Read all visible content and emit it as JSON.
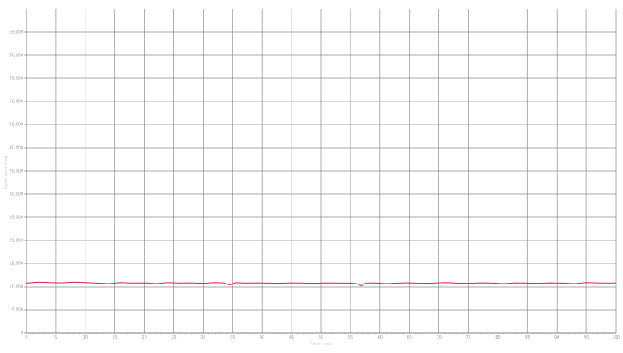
{
  "chart_data": {
    "type": "line",
    "title": "",
    "xlabel": "Time (ms)",
    "ylabel": "Light level (lux)",
    "xlim": [
      0,
      100
    ],
    "ylim": [
      0,
      70000
    ],
    "xticks": [
      0,
      5,
      10,
      15,
      20,
      25,
      30,
      35,
      40,
      45,
      50,
      55,
      60,
      65,
      70,
      75,
      80,
      85,
      90,
      95,
      100
    ],
    "yticks": [
      0,
      5000,
      10000,
      15000,
      20000,
      25000,
      30000,
      35000,
      40000,
      45000,
      50000,
      55000,
      60000,
      65000
    ],
    "ytick_labels": [
      "0",
      "5,000",
      "10,000",
      "15,000",
      "20,000",
      "25,000",
      "30,000",
      "35,000",
      "40,000",
      "45,000",
      "50,000",
      "55,000",
      "60,000",
      "65,000"
    ],
    "grid": true,
    "legend": "none",
    "series_color": "#e0204a",
    "series": [
      {
        "x": [
          0,
          2,
          4,
          6,
          8,
          10,
          12,
          14,
          16,
          18,
          20,
          22,
          24,
          26,
          28,
          30,
          32,
          33.5,
          34.5,
          35.5,
          37,
          39,
          41,
          43,
          45,
          47,
          49,
          51,
          53,
          55,
          56,
          56.8,
          57.6,
          59,
          61,
          63,
          65,
          67,
          69,
          71,
          73,
          75,
          77,
          79,
          81,
          83,
          85,
          87,
          89,
          91,
          93,
          95,
          97,
          99,
          100
        ],
        "y": [
          10800,
          11000,
          10900,
          10850,
          11000,
          10900,
          10800,
          10700,
          10900,
          10800,
          10850,
          10700,
          10900,
          10800,
          10850,
          10750,
          10900,
          10850,
          10400,
          10900,
          10800,
          10850,
          10800,
          10750,
          10850,
          10800,
          10750,
          10850,
          10800,
          10800,
          10700,
          10250,
          10800,
          10850,
          10700,
          10800,
          10850,
          10750,
          10800,
          10900,
          10800,
          10750,
          10850,
          10800,
          10700,
          10850,
          10800,
          10750,
          10850,
          10800,
          10700,
          10900,
          10850,
          10800,
          10850
        ]
      }
    ]
  }
}
